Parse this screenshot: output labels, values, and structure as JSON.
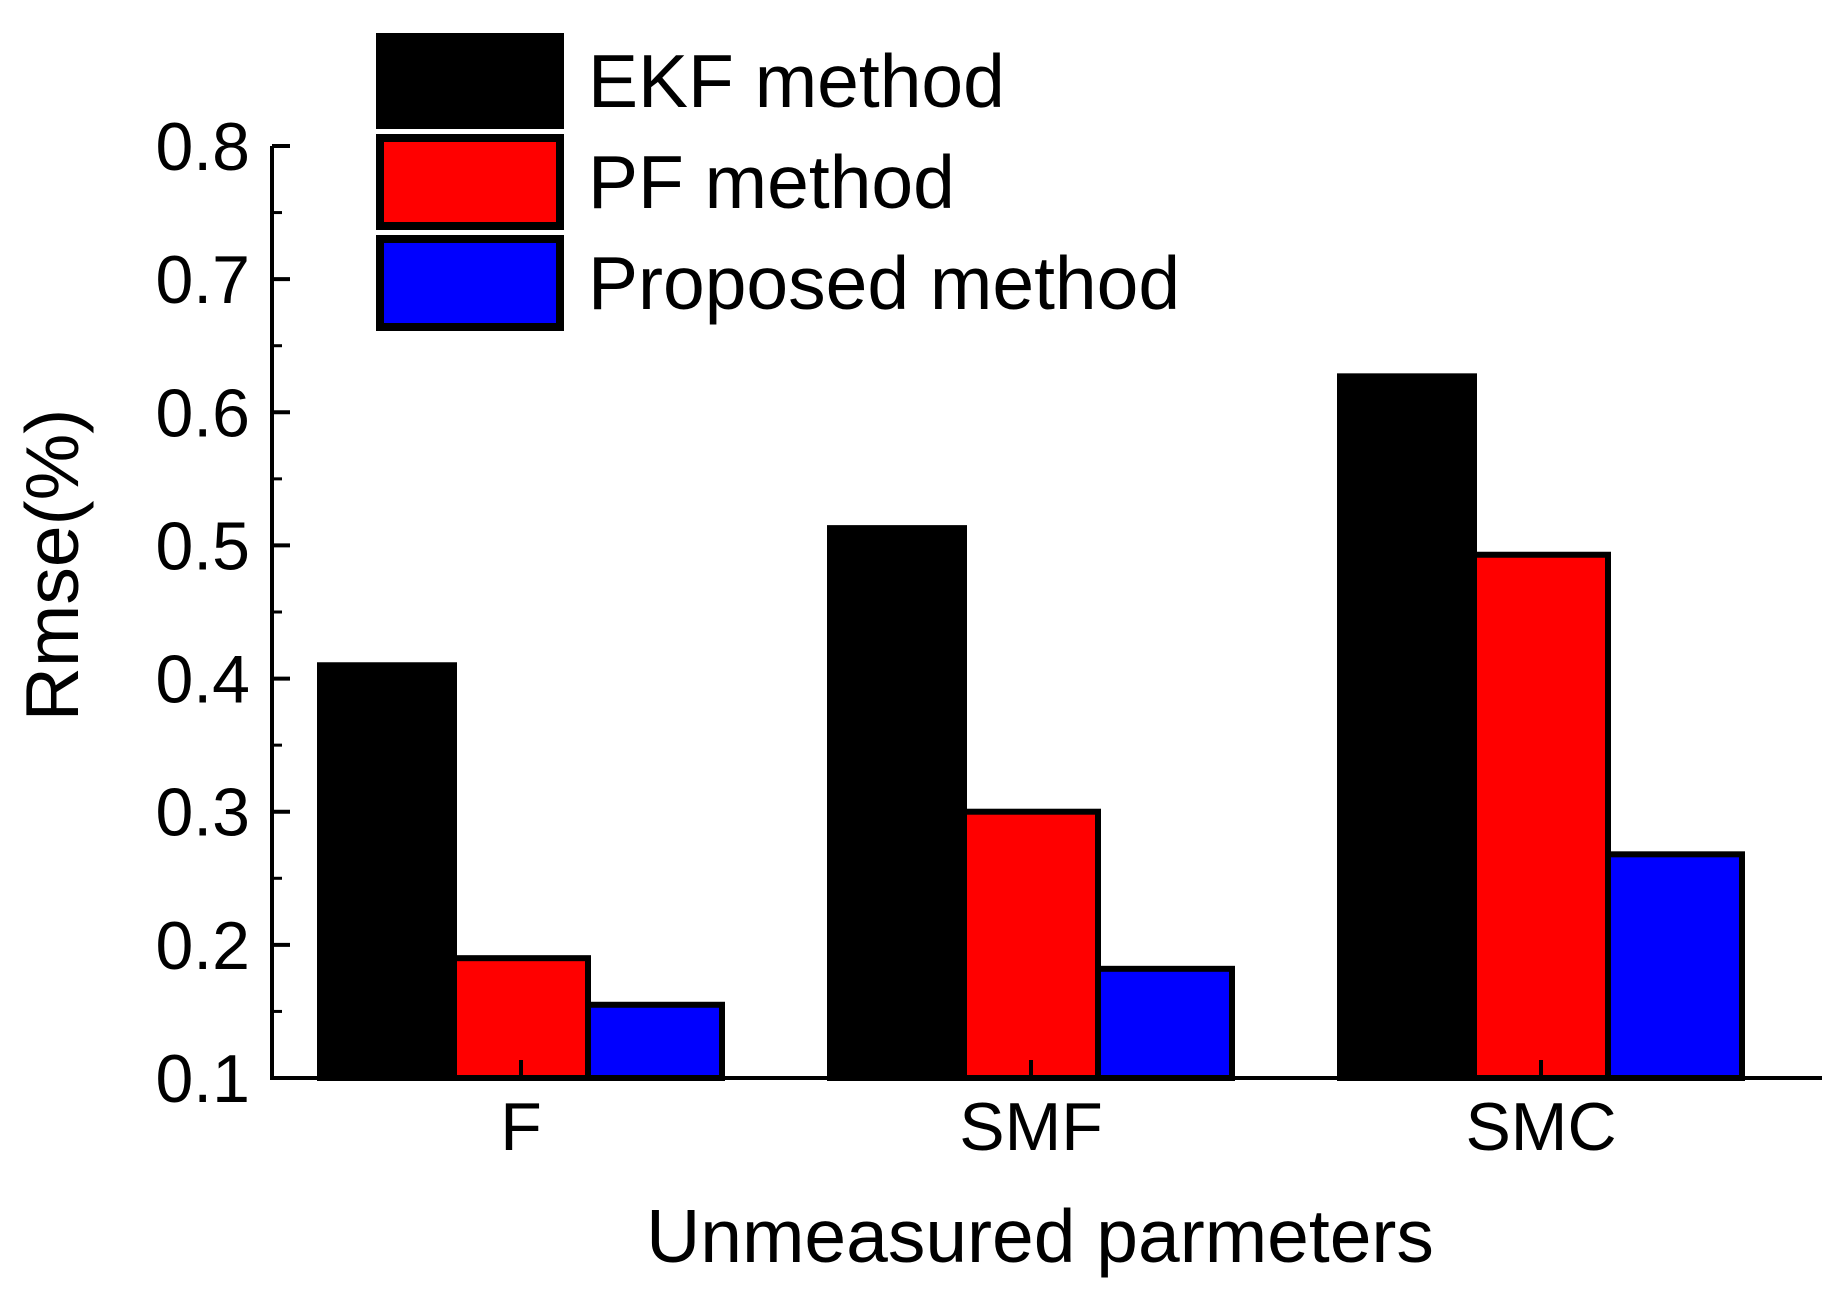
{
  "chart_data": {
    "type": "bar",
    "categories": [
      "F",
      "SMF",
      "SMC"
    ],
    "series": [
      {
        "name": "EKF method",
        "values": [
          0.41,
          0.513,
          0.627
        ],
        "color": "#000000"
      },
      {
        "name": "PF method",
        "values": [
          0.19,
          0.3,
          0.493
        ],
        "color": "#ff0000"
      },
      {
        "name": "Proposed method",
        "values": [
          0.155,
          0.182,
          0.268
        ],
        "color": "#0000ff"
      }
    ],
    "xlabel": "Unmeasured parmeters",
    "ylabel": "Rmse(%)",
    "ylim": [
      0.1,
      0.8
    ],
    "yticks": [
      "0.1",
      "0.2",
      "0.3",
      "0.4",
      "0.5",
      "0.6",
      "0.7",
      "0.8"
    ],
    "legend_position": "top-left",
    "grid": false
  }
}
